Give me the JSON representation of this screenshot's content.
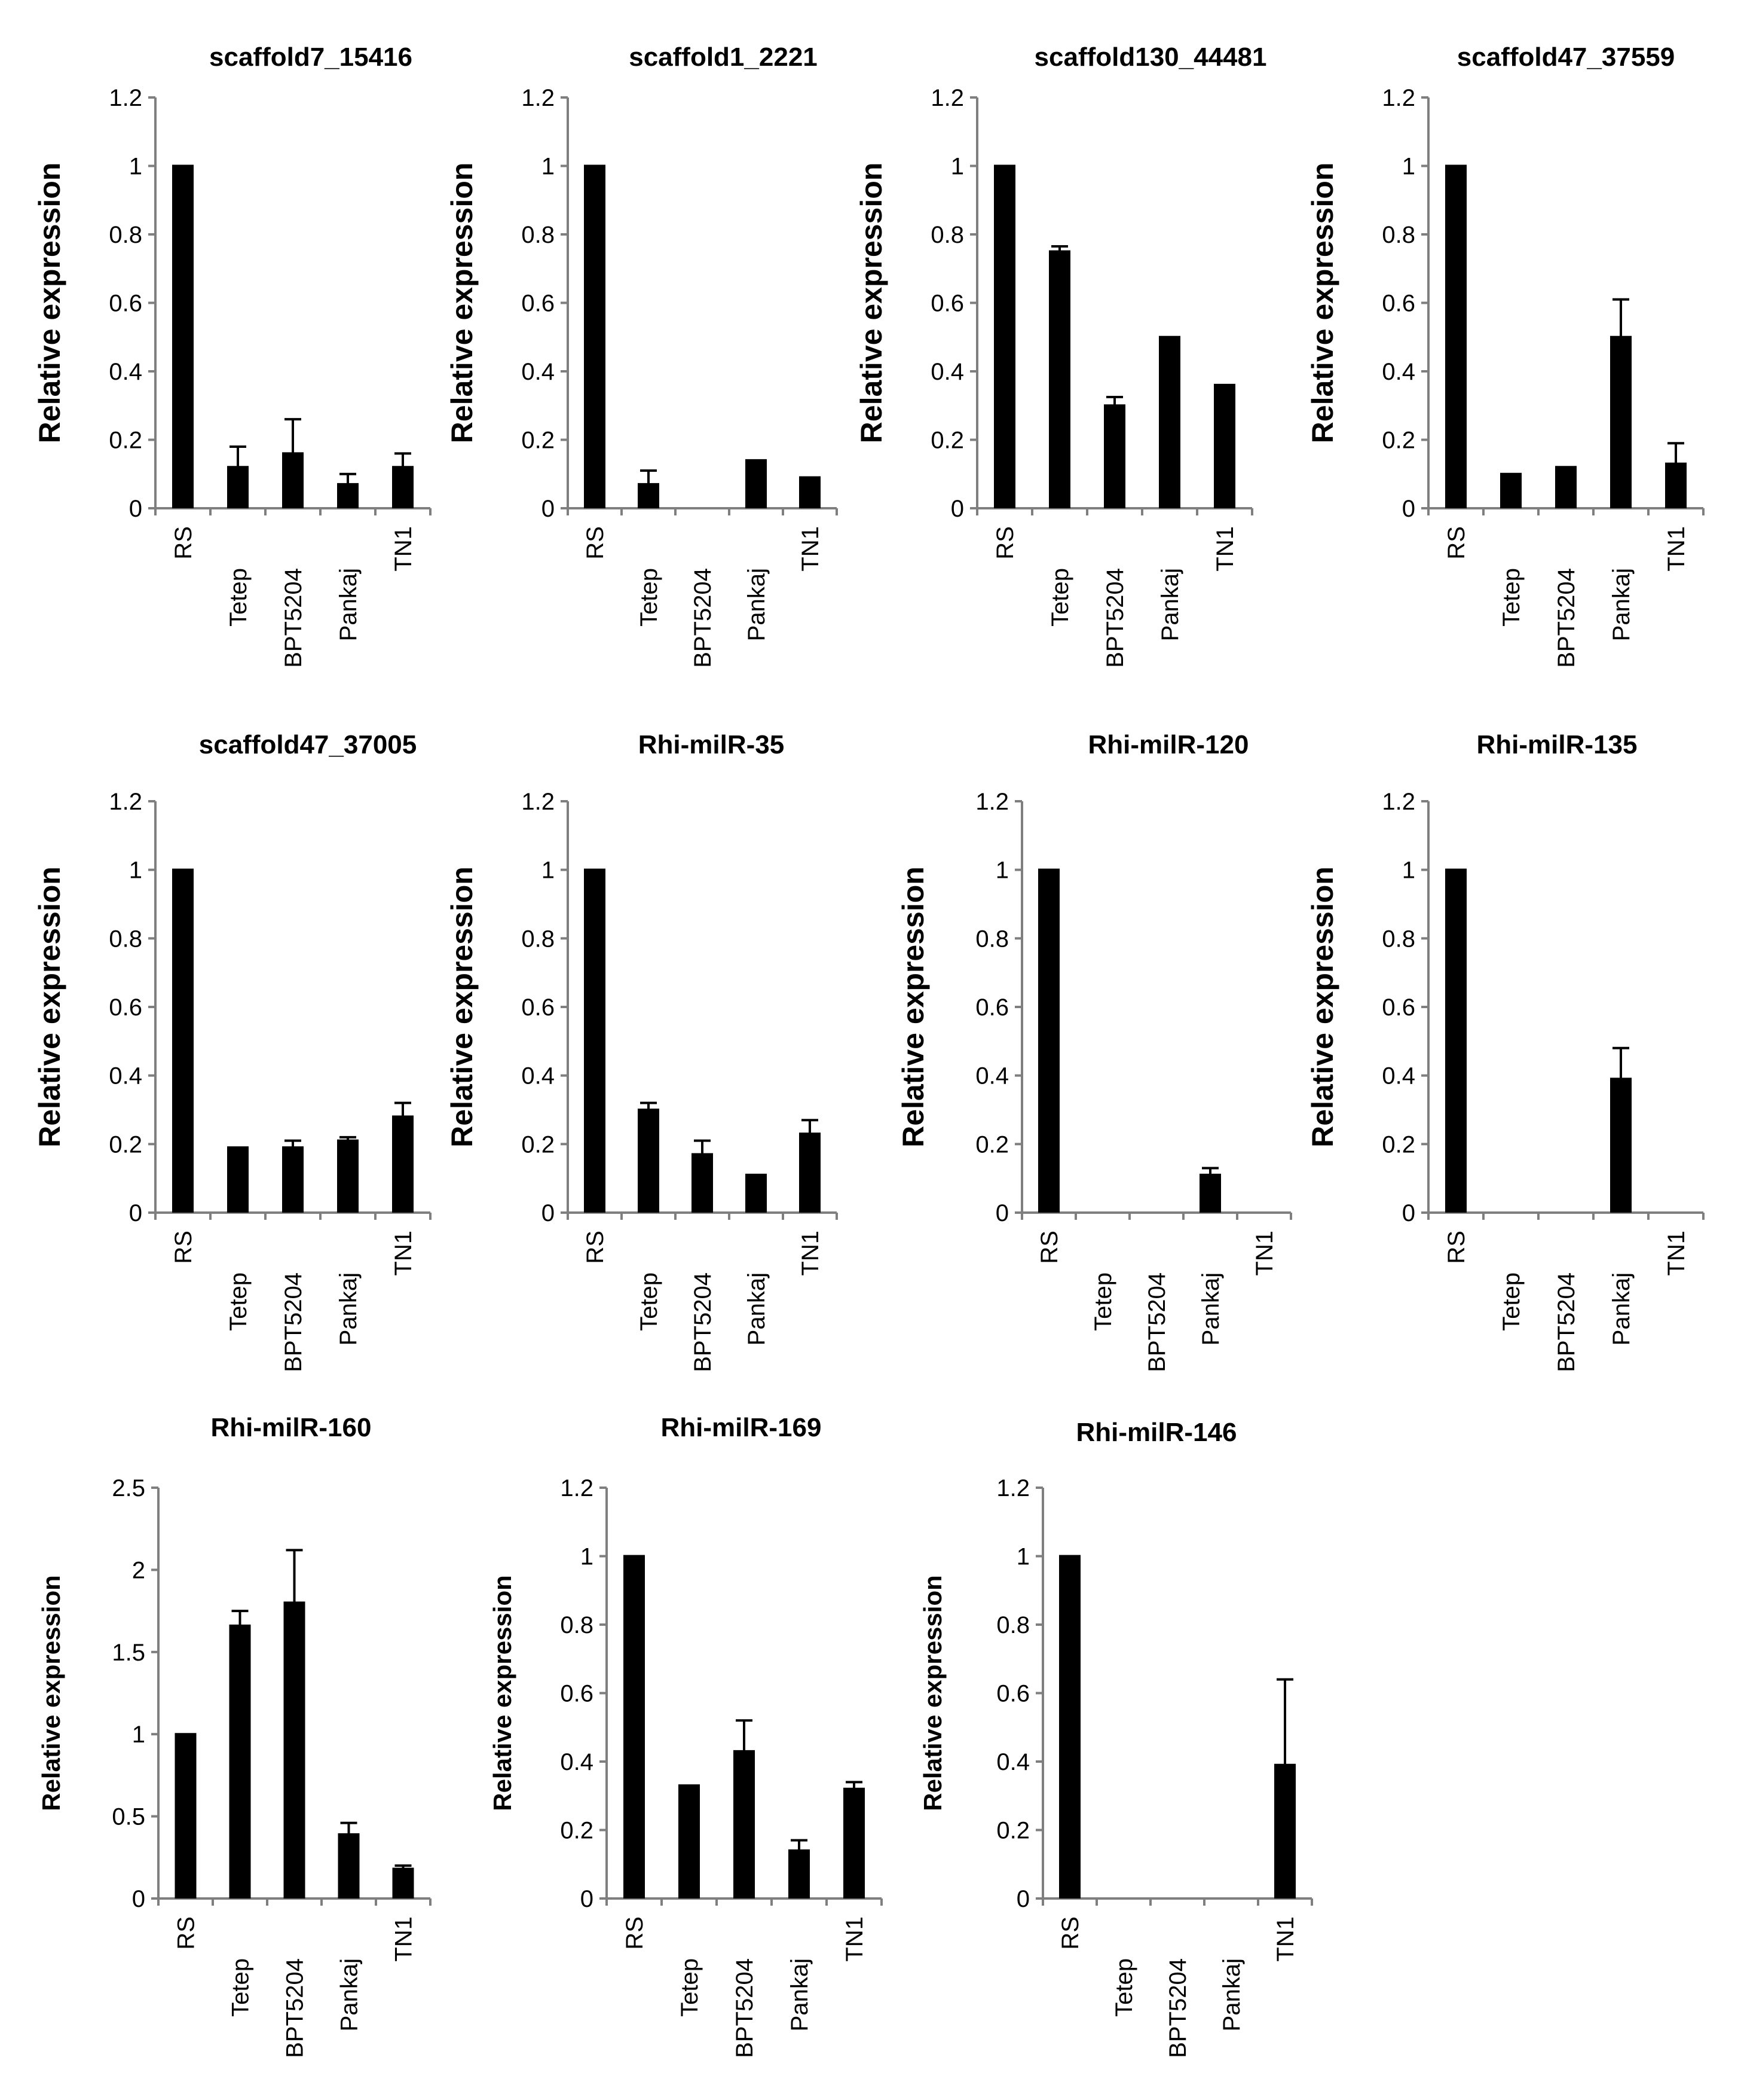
{
  "figure": {
    "bar_color": "#000000",
    "axis_color": "#7f7f7f"
  },
  "chart_data": [
    {
      "type": "bar",
      "title": "scaffold7_15416",
      "ylabel": "Relative expression",
      "categories": [
        "RS",
        "Tetep",
        "BPT5204",
        "Pankaj",
        "TN1"
      ],
      "values": [
        1.0,
        0.12,
        0.16,
        0.07,
        0.12
      ],
      "errors": [
        0.0,
        0.06,
        0.1,
        0.03,
        0.04
      ],
      "ylim": [
        0,
        1.2
      ],
      "yticks": [
        "0",
        "0.2",
        "0.4",
        "0.6",
        "0.8",
        "1",
        "1.2"
      ]
    },
    {
      "type": "bar",
      "title": "scaffold1_2221",
      "ylabel": "Relative expression",
      "categories": [
        "RS",
        "Tetep",
        "BPT5204",
        "Pankaj",
        "TN1"
      ],
      "values": [
        1.0,
        0.07,
        0.0,
        0.14,
        0.09
      ],
      "errors": [
        0.0,
        0.04,
        0.0,
        0.0,
        0.0
      ],
      "ylim": [
        0,
        1.2
      ],
      "yticks": [
        "0",
        "0.2",
        "0.4",
        "0.6",
        "0.8",
        "1",
        "1.2"
      ]
    },
    {
      "type": "bar",
      "title": "scaffold130_44481",
      "ylabel": "Relative expression",
      "categories": [
        "RS",
        "Tetep",
        "BPT5204",
        "Pankaj",
        "TN1"
      ],
      "values": [
        1.0,
        0.75,
        0.3,
        0.5,
        0.36
      ],
      "errors": [
        0.0,
        0.015,
        0.025,
        0.0,
        0.0
      ],
      "ylim": [
        0,
        1.2
      ],
      "yticks": [
        "0",
        "0.2",
        "0.4",
        "0.6",
        "0.8",
        "1",
        "1.2"
      ]
    },
    {
      "type": "bar",
      "title": "scaffold47_37559",
      "ylabel": "Relative expression",
      "categories": [
        "RS",
        "Tetep",
        "BPT5204",
        "Pankaj",
        "TN1"
      ],
      "values": [
        1.0,
        0.1,
        0.12,
        0.5,
        0.13
      ],
      "errors": [
        0.0,
        0.0,
        0.0,
        0.11,
        0.06
      ],
      "ylim": [
        0,
        1.2
      ],
      "yticks": [
        "0",
        "0.2",
        "0.4",
        "0.6",
        "0.8",
        "1",
        "1.2"
      ]
    },
    {
      "type": "bar",
      "title": "scaffold47_37005",
      "ylabel": "Relative expression",
      "categories": [
        "RS",
        "Tetep",
        "BPT5204",
        "Pankaj",
        "TN1"
      ],
      "values": [
        1.0,
        0.19,
        0.19,
        0.21,
        0.28
      ],
      "errors": [
        0.0,
        0.0,
        0.02,
        0.01,
        0.04
      ],
      "ylim": [
        0,
        1.2
      ],
      "yticks": [
        "0",
        "0.2",
        "0.4",
        "0.6",
        "0.8",
        "1",
        "1.2"
      ]
    },
    {
      "type": "bar",
      "title": "Rhi-milR-35",
      "ylabel": "Relative expression",
      "categories": [
        "RS",
        "Tetep",
        "BPT5204",
        "Pankaj",
        "TN1"
      ],
      "values": [
        1.0,
        0.3,
        0.17,
        0.11,
        0.23
      ],
      "errors": [
        0.0,
        0.02,
        0.04,
        0.0,
        0.04
      ],
      "ylim": [
        0,
        1.2
      ],
      "yticks": [
        "0",
        "0.2",
        "0.4",
        "0.6",
        "0.8",
        "1",
        "1.2"
      ]
    },
    {
      "type": "bar",
      "title": "Rhi-milR-120",
      "ylabel": "Relative expression",
      "categories": [
        "RS",
        "Tetep",
        "BPT5204",
        "Pankaj",
        "TN1"
      ],
      "values": [
        1.0,
        0.0,
        0.0,
        0.11,
        0.0
      ],
      "errors": [
        0.0,
        0.0,
        0.0,
        0.02,
        0.0
      ],
      "ylim": [
        0,
        1.2
      ],
      "yticks": [
        "0",
        "0.2",
        "0.4",
        "0.6",
        "0.8",
        "1",
        "1.2"
      ]
    },
    {
      "type": "bar",
      "title": "Rhi-milR-135",
      "ylabel": "Relative expression",
      "categories": [
        "RS",
        "Tetep",
        "BPT5204",
        "Pankaj",
        "TN1"
      ],
      "values": [
        1.0,
        0.0,
        0.0,
        0.39,
        0.0
      ],
      "errors": [
        0.0,
        0.0,
        0.0,
        0.09,
        0.0
      ],
      "ylim": [
        0,
        1.2
      ],
      "yticks": [
        "0",
        "0.2",
        "0.4",
        "0.6",
        "0.8",
        "1",
        "1.2"
      ]
    },
    {
      "type": "bar",
      "title": "Rhi-milR-160",
      "ylabel": "Relative expression",
      "categories": [
        "RS",
        "Tetep",
        "BPT5204",
        "Pankaj",
        "TN1"
      ],
      "values": [
        1.0,
        1.66,
        1.8,
        0.39,
        0.18
      ],
      "errors": [
        0.0,
        0.09,
        0.32,
        0.07,
        0.02
      ],
      "ylim": [
        0,
        2.5
      ],
      "yticks": [
        "0",
        "0.5",
        "1",
        "1.5",
        "2",
        "2.5"
      ]
    },
    {
      "type": "bar",
      "title": "Rhi-milR-169",
      "ylabel": "Relative expression",
      "categories": [
        "RS",
        "Tetep",
        "BPT5204",
        "Pankaj",
        "TN1"
      ],
      "values": [
        1.0,
        0.33,
        0.43,
        0.14,
        0.32
      ],
      "errors": [
        0.0,
        0.0,
        0.09,
        0.03,
        0.02
      ],
      "ylim": [
        0,
        1.2
      ],
      "yticks": [
        "0",
        "0.2",
        "0.4",
        "0.6",
        "0.8",
        "1",
        "1.2"
      ]
    },
    {
      "type": "bar",
      "title": "Rhi-milR-146",
      "ylabel": "Relative expression",
      "categories": [
        "RS",
        "Tetep",
        "BPT5204",
        "Pankaj",
        "TN1"
      ],
      "values": [
        1.0,
        0.0,
        0.0,
        0.0,
        0.39
      ],
      "errors": [
        0.0,
        0.0,
        0.0,
        0.0,
        0.25
      ],
      "ylim": [
        0,
        1.2
      ],
      "yticks": [
        "0",
        "0.2",
        "0.4",
        "0.6",
        "0.8",
        "1",
        "1.2"
      ]
    }
  ]
}
